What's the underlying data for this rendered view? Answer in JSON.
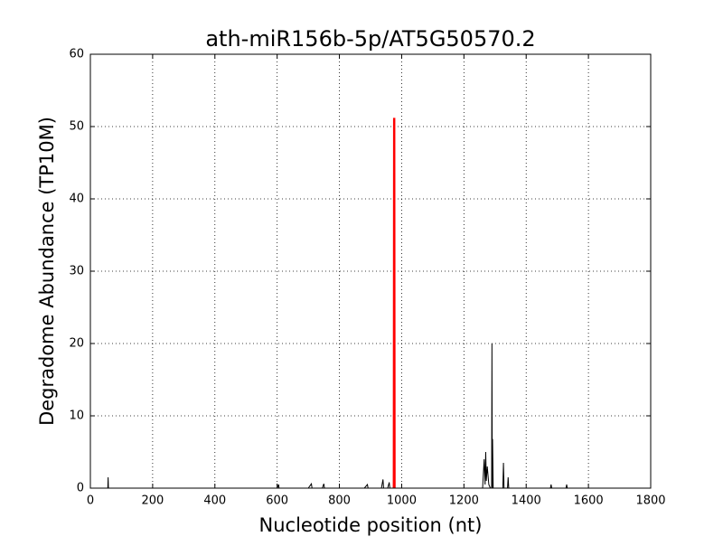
{
  "chart_data": {
    "type": "line",
    "title": "ath-miR156b-5p/AT5G50570.2",
    "xlabel": "Nucleotide position (nt)",
    "ylabel": "Degradome Abundance (TP10M)",
    "xlim": [
      0,
      1800
    ],
    "xticks": [
      0,
      200,
      400,
      600,
      800,
      1000,
      1200,
      1400,
      1600,
      1800
    ],
    "ylim": [
      0,
      60
    ],
    "yticks": [
      0,
      10,
      20,
      30,
      40,
      50,
      60
    ],
    "grid": true,
    "series": [
      {
        "color": "#000000",
        "x": [
          0,
          56,
          57,
          58,
          600,
          605,
          606,
          700,
          710,
          712,
          745,
          750,
          752,
          880,
          890,
          892,
          935,
          940,
          942,
          955,
          960,
          962,
          1260,
          1265,
          1268,
          1270,
          1272,
          1275,
          1280,
          1285,
          1289,
          1290,
          1291,
          1292,
          1294,
          1325,
          1327,
          1329,
          1340,
          1342,
          1344,
          1478,
          1480,
          1482,
          1528,
          1530,
          1532,
          1800
        ],
        "values": [
          0,
          0,
          1.5,
          0,
          0,
          0.5,
          0,
          0,
          0.6,
          0,
          0,
          0.6,
          0,
          0,
          0.5,
          0,
          0,
          1.2,
          0,
          0,
          0.8,
          0,
          0,
          4,
          0.5,
          5,
          1,
          3,
          0.5,
          0,
          0,
          20,
          0,
          6.8,
          0,
          0,
          3.5,
          0,
          0,
          1.5,
          0,
          0,
          0.5,
          0,
          0,
          0.5,
          0,
          0
        ]
      },
      {
        "color": "#ff0000",
        "x": [
          975,
          976,
          977
        ],
        "values": [
          0,
          51.2,
          0
        ]
      }
    ]
  }
}
